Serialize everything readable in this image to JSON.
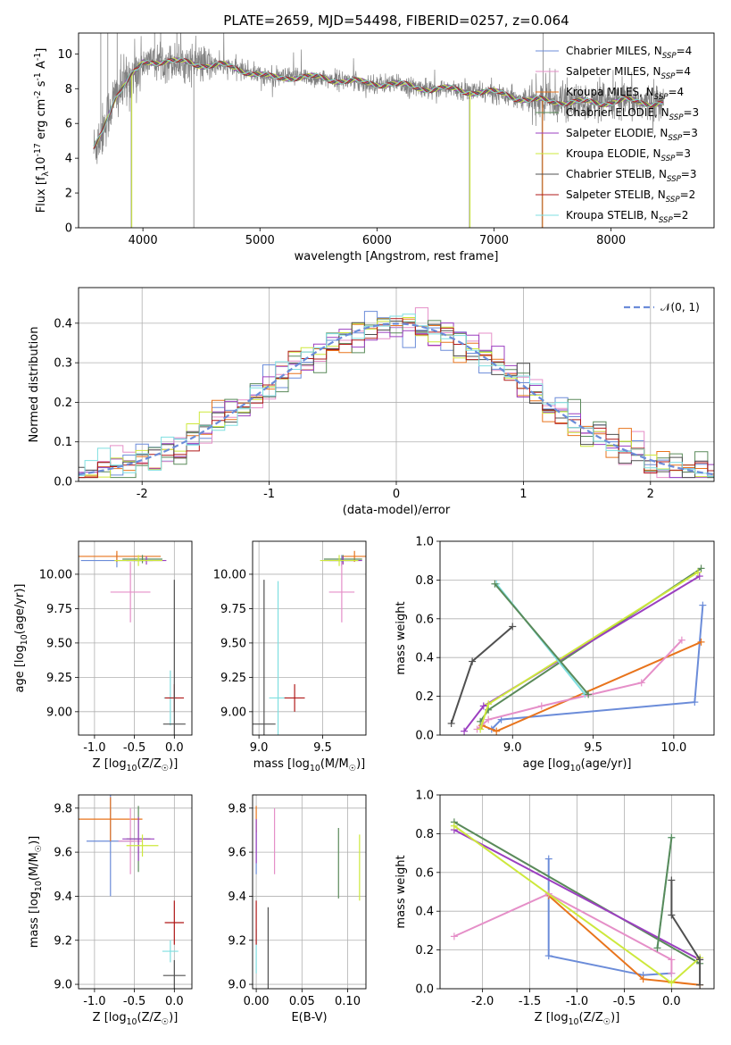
{
  "chart_data": [
    {
      "id": "spectrum",
      "type": "line",
      "title": "PLATE=2659, MJD=54498, FIBERID=0257, z=0.064",
      "xlabel": "wavelength [Angstrom, rest frame]",
      "ylabel": "Flux [f$_\\lambda$10$^{-17}$ erg cm$^{-2}$ s$^{-1}$ A$^{-1}$]",
      "xlim": [
        3450,
        8880
      ],
      "ylim": [
        0,
        11.2
      ],
      "xticks": [
        4000,
        5000,
        6000,
        7000,
        8000
      ],
      "yticks": [
        0,
        2,
        4,
        6,
        8,
        10
      ],
      "data_color": "#808080",
      "continuum": [
        [
          3580,
          4.5
        ],
        [
          3650,
          5.5
        ],
        [
          3700,
          6.5
        ],
        [
          3760,
          7.5
        ],
        [
          3820,
          8.0
        ],
        [
          3900,
          8.7
        ],
        [
          3950,
          9.0
        ],
        [
          4000,
          9.5
        ],
        [
          4100,
          9.6
        ],
        [
          4200,
          9.6
        ],
        [
          4300,
          9.5
        ],
        [
          4400,
          9.5
        ],
        [
          4500,
          9.4
        ],
        [
          4700,
          9.3
        ],
        [
          4900,
          9.0
        ],
        [
          5100,
          8.6
        ],
        [
          5300,
          8.7
        ],
        [
          5500,
          8.6
        ],
        [
          5700,
          8.5
        ],
        [
          5900,
          8.3
        ],
        [
          6100,
          8.3
        ],
        [
          6300,
          8.1
        ],
        [
          6500,
          8.0
        ],
        [
          6700,
          7.9
        ],
        [
          6900,
          7.8
        ],
        [
          7100,
          7.7
        ],
        [
          7300,
          7.3
        ],
        [
          7500,
          7.3
        ],
        [
          7700,
          7.2
        ],
        [
          7900,
          7.2
        ],
        [
          8100,
          7.3
        ],
        [
          8300,
          7.2
        ],
        [
          8450,
          7.2
        ]
      ],
      "legend": [
        {
          "name": "Chabrier MILES, N$_{SSP}$=4",
          "color": "#6b8cd9"
        },
        {
          "name": "Salpeter MILES, N$_{SSP}$=4",
          "color": "#e58fc8"
        },
        {
          "name": "Kroupa MILES, N$_{SSP}$=4",
          "color": "#e8741c"
        },
        {
          "name": "Chabrier ELODIE, N$_{SSP}$=3",
          "color": "#5a8a5a"
        },
        {
          "name": "Salpeter ELODIE, N$_{SSP}$=3",
          "color": "#9b3fc0"
        },
        {
          "name": "Kroupa ELODIE, N$_{SSP}$=3",
          "color": "#cde83c"
        },
        {
          "name": "Chabrier STELIB, N$_{SSP}$=3",
          "color": "#505050"
        },
        {
          "name": "Salpeter STELIB, N$_{SSP}$=2",
          "color": "#b01818"
        },
        {
          "name": "Kroupa STELIB, N$_{SSP}$=2",
          "color": "#7fdfe0"
        }
      ]
    },
    {
      "id": "residuals",
      "type": "line",
      "xlabel": "(data-model)/error",
      "ylabel": "Normed distribution",
      "xlim": [
        -2.5,
        2.5
      ],
      "ylim": [
        0,
        0.49
      ],
      "xticks": [
        -2,
        -1,
        0,
        1,
        2
      ],
      "yticks": [
        0.0,
        0.1,
        0.2,
        0.3,
        0.4
      ],
      "legend": [
        {
          "name": "$\\mathcal{N}(0,1)$",
          "color": "#6b8cd9"
        }
      ]
    },
    {
      "id": "age_vs_z",
      "type": "scatter",
      "xlabel": "Z [log$_{10}$(Z/Z$_\\odot$)]",
      "ylabel": "age  [log$_{10}$(age/yr)]",
      "xlim": [
        -1.2,
        0.22
      ],
      "ylim": [
        8.83,
        10.24
      ],
      "xticks": [
        -1.0,
        -0.5,
        0.0
      ],
      "yticks": [
        9.0,
        9.25,
        9.5,
        9.75,
        10.0
      ],
      "points": [
        {
          "c": "#6b8cd9",
          "x": -0.72,
          "y": 10.1,
          "xerr": 0.45,
          "yerr": 0.05
        },
        {
          "c": "#e8741c",
          "x": -0.72,
          "y": 10.13,
          "xerr": 0.55,
          "yerr": 0.04
        },
        {
          "c": "#e58fc8",
          "x": -0.55,
          "y": 9.87,
          "xerr": 0.25,
          "yerr": 0.22
        },
        {
          "c": "#5a8a5a",
          "x": -0.4,
          "y": 10.11,
          "xerr": 0.25,
          "yerr": 0.03
        },
        {
          "c": "#9b3fc0",
          "x": -0.35,
          "y": 10.1,
          "xerr": 0.25,
          "yerr": 0.03
        },
        {
          "c": "#cde83c",
          "x": -0.45,
          "y": 10.1,
          "xerr": 0.3,
          "yerr": 0.04
        },
        {
          "c": "#7fdfe0",
          "x": -0.05,
          "y": 9.1,
          "xerr": 0.08,
          "yerr": 0.2
        },
        {
          "c": "#b01818",
          "x": 0.0,
          "y": 9.1,
          "xerr": 0.12,
          "yerr": 0.1
        },
        {
          "c": "#505050",
          "x": 0.0,
          "y": 8.91,
          "xerr": 0.14,
          "yerr": 1.05
        }
      ]
    },
    {
      "id": "age_vs_mass",
      "type": "scatter",
      "xlabel": "mass [log$_{10}$(M/M$_\\odot$)]",
      "xlim": [
        8.95,
        9.84
      ],
      "ylim": [
        8.83,
        10.24
      ],
      "xticks": [
        9.0,
        9.5
      ],
      "yticks": [
        9.0,
        9.25,
        9.5,
        9.75,
        10.0
      ],
      "points": [
        {
          "c": "#6b8cd9",
          "x": 9.65,
          "y": 10.1,
          "xerr": 0.1,
          "yerr": 0.04
        },
        {
          "c": "#e8741c",
          "x": 9.75,
          "y": 10.13,
          "xerr": 0.1,
          "yerr": 0.04
        },
        {
          "c": "#e58fc8",
          "x": 9.65,
          "y": 9.87,
          "xerr": 0.1,
          "yerr": 0.22
        },
        {
          "c": "#5a8a5a",
          "x": 9.66,
          "y": 10.11,
          "xerr": 0.15,
          "yerr": 0.03
        },
        {
          "c": "#9b3fc0",
          "x": 9.66,
          "y": 10.1,
          "xerr": 0.15,
          "yerr": 0.03
        },
        {
          "c": "#cde83c",
          "x": 9.63,
          "y": 10.1,
          "xerr": 0.15,
          "yerr": 0.04
        },
        {
          "c": "#7fdfe0",
          "x": 9.15,
          "y": 9.1,
          "xerr": 0.07,
          "yerr": 0.85
        },
        {
          "c": "#b01818",
          "x": 9.28,
          "y": 9.1,
          "xerr": 0.08,
          "yerr": 0.1
        },
        {
          "c": "#505050",
          "x": 9.04,
          "y": 8.91,
          "xerr": 0.09,
          "yerr": 1.05
        }
      ]
    },
    {
      "id": "weight_vs_age",
      "type": "line",
      "xlabel": "age  [log$_{10}$(age/yr)]",
      "ylabel": "mass weight",
      "xlim": [
        8.55,
        10.25
      ],
      "ylim": [
        0,
        1.0
      ],
      "xticks": [
        9.0,
        9.5,
        10.0
      ],
      "yticks": [
        0.0,
        0.2,
        0.4,
        0.6,
        0.8,
        1.0
      ],
      "series": [
        {
          "c": "#6b8cd9",
          "x": [
            8.87,
            8.93,
            10.13,
            10.18
          ],
          "y": [
            0.03,
            0.08,
            0.17,
            0.67
          ]
        },
        {
          "c": "#e8741c",
          "x": [
            8.81,
            8.9,
            10.17
          ],
          "y": [
            0.05,
            0.02,
            0.48
          ]
        },
        {
          "c": "#e58fc8",
          "x": [
            8.78,
            8.85,
            9.18,
            9.8,
            10.05
          ],
          "y": [
            0.03,
            0.08,
            0.15,
            0.27,
            0.49
          ]
        },
        {
          "c": "#5a8a5a",
          "x": [
            8.8,
            8.85,
            10.17
          ],
          "y": [
            0.07,
            0.13,
            0.86
          ]
        },
        {
          "c": "#9b3fc0",
          "x": [
            8.7,
            8.82,
            10.16
          ],
          "y": [
            0.02,
            0.15,
            0.82
          ]
        },
        {
          "c": "#cde83c",
          "x": [
            8.8,
            8.85,
            10.15
          ],
          "y": [
            0.03,
            0.16,
            0.84
          ]
        },
        {
          "c": "#7fdfe0",
          "x": [
            8.9,
            9.45
          ],
          "y": [
            0.78,
            0.21
          ]
        },
        {
          "c": "#5a8a5a",
          "x": [
            8.89,
            9.47
          ],
          "y": [
            0.78,
            0.21
          ]
        },
        {
          "c": "#505050",
          "x": [
            8.62,
            8.75,
            9.0
          ],
          "y": [
            0.06,
            0.38,
            0.56
          ]
        }
      ]
    },
    {
      "id": "mass_vs_z",
      "type": "scatter",
      "xlabel": "Z [log$_{10}$(Z/Z$_\\odot$)]",
      "ylabel": "mass [log$_{10}$(M/M$_\\odot$)]",
      "xlim": [
        -1.2,
        0.22
      ],
      "ylim": [
        8.98,
        9.86
      ],
      "xticks": [
        -1.0,
        -0.5,
        0.0
      ],
      "yticks": [
        9.0,
        9.2,
        9.4,
        9.6,
        9.8
      ],
      "points": [
        {
          "c": "#6b8cd9",
          "x": -0.8,
          "y": 9.65,
          "xerr": 0.3,
          "yerr": 0.25
        },
        {
          "c": "#e8741c",
          "x": -0.8,
          "y": 9.75,
          "xerr": 0.4,
          "yerr": 0.1
        },
        {
          "c": "#e58fc8",
          "x": -0.55,
          "y": 9.65,
          "xerr": 0.15,
          "yerr": 0.15
        },
        {
          "c": "#5a8a5a",
          "x": -0.45,
          "y": 9.66,
          "xerr": 0.15,
          "yerr": 0.15
        },
        {
          "c": "#9b3fc0",
          "x": -0.45,
          "y": 9.66,
          "xerr": 0.2,
          "yerr": 0.1
        },
        {
          "c": "#cde83c",
          "x": -0.4,
          "y": 9.63,
          "xerr": 0.2,
          "yerr": 0.05
        },
        {
          "c": "#7fdfe0",
          "x": -0.05,
          "y": 9.15,
          "xerr": 0.1,
          "yerr": 0.05
        },
        {
          "c": "#b01818",
          "x": 0.0,
          "y": 9.28,
          "xerr": 0.12,
          "yerr": 0.1
        },
        {
          "c": "#505050",
          "x": 0.0,
          "y": 9.04,
          "xerr": 0.14,
          "yerr": 0.07
        }
      ]
    },
    {
      "id": "mass_vs_ebv",
      "type": "scatter",
      "xlabel": "E(B-V)",
      "xlim": [
        -0.004,
        0.12
      ],
      "ylim": [
        8.98,
        9.86
      ],
      "xticks": [
        0.0,
        0.05,
        0.1
      ],
      "yticks": [
        9.0,
        9.2,
        9.4,
        9.6,
        9.8
      ],
      "points": [
        {
          "c": "#6b8cd9",
          "x": 0.0,
          "y": 9.6,
          "xerr": 0,
          "yerr": 0.1
        },
        {
          "c": "#e8741c",
          "x": 0.0,
          "y": 9.75,
          "xerr": 0,
          "yerr": 0.06
        },
        {
          "c": "#e58fc8",
          "x": 0.02,
          "y": 9.65,
          "xerr": 0,
          "yerr": 0.15
        },
        {
          "c": "#5a8a5a",
          "x": 0.09,
          "y": 9.55,
          "xerr": 0,
          "yerr": 0.16
        },
        {
          "c": "#9b3fc0",
          "x": 0.0,
          "y": 9.65,
          "xerr": 0,
          "yerr": 0.1
        },
        {
          "c": "#cde83c",
          "x": 0.113,
          "y": 9.53,
          "xerr": 0,
          "yerr": 0.15
        },
        {
          "c": "#7fdfe0",
          "x": 0.0,
          "y": 9.15,
          "xerr": 0,
          "yerr": 0.1
        },
        {
          "c": "#b01818",
          "x": 0.0,
          "y": 9.28,
          "xerr": 0,
          "yerr": 0.1
        },
        {
          "c": "#505050",
          "x": 0.013,
          "y": 9.12,
          "xerr": 0,
          "yerr": 0.23
        }
      ]
    },
    {
      "id": "weight_vs_z",
      "type": "line",
      "xlabel": "Z [log$_{10}$(Z/Z$_\\odot$)]",
      "ylabel": "mass weight",
      "xlim": [
        -2.45,
        0.45
      ],
      "ylim": [
        0,
        1.0
      ],
      "xticks": [
        -2.0,
        -1.5,
        -1.0,
        -0.5,
        0.0
      ],
      "yticks": [
        0.0,
        0.2,
        0.4,
        0.6,
        0.8,
        1.0
      ],
      "series": [
        {
          "c": "#6b8cd9",
          "x": [
            -1.3,
            -1.3,
            -0.3,
            0.0
          ],
          "y": [
            0.67,
            0.17,
            0.07,
            0.08
          ]
        },
        {
          "c": "#e8741c",
          "x": [
            -1.3,
            -0.3,
            0.3
          ],
          "y": [
            0.48,
            0.05,
            0.02
          ]
        },
        {
          "c": "#e58fc8",
          "x": [
            -2.3,
            -1.3,
            0.0,
            0.0
          ],
          "y": [
            0.27,
            0.49,
            0.15,
            0.08
          ]
        },
        {
          "c": "#5a8a5a",
          "x": [
            -2.3,
            0.3
          ],
          "y": [
            0.86,
            0.13
          ]
        },
        {
          "c": "#9b3fc0",
          "x": [
            -2.3,
            0.3
          ],
          "y": [
            0.82,
            0.15
          ]
        },
        {
          "c": "#cde83c",
          "x": [
            -2.3,
            0.0,
            0.3
          ],
          "y": [
            0.84,
            0.03,
            0.16
          ]
        },
        {
          "c": "#7fdfe0",
          "x": [
            -0.15,
            0.0
          ],
          "y": [
            0.21,
            0.78
          ]
        },
        {
          "c": "#5a8a5a",
          "x": [
            -0.15,
            0.0
          ],
          "y": [
            0.21,
            0.78
          ]
        },
        {
          "c": "#505050",
          "x": [
            0.0,
            0.0,
            0.3,
            0.3
          ],
          "y": [
            0.56,
            0.38,
            0.15,
            0.02
          ]
        }
      ]
    }
  ]
}
